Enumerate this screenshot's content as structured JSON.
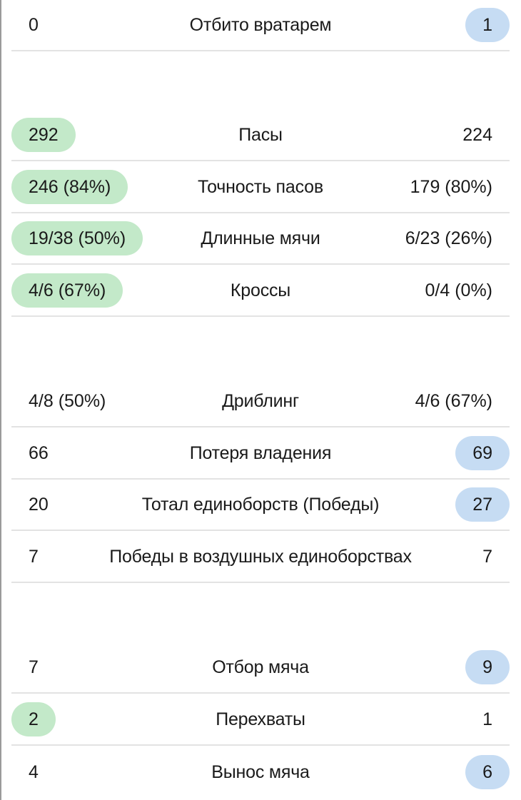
{
  "stats": [
    {
      "label": "Отбито вратарем",
      "home": "0",
      "away": "1",
      "highlight": "away"
    },
    {
      "label": "Пасы",
      "home": "292",
      "away": "224",
      "highlight": "home"
    },
    {
      "label": "Точность пасов",
      "home": "246 (84%)",
      "away": "179 (80%)",
      "highlight": "home"
    },
    {
      "label": "Длинные мячи",
      "home": "19/38 (50%)",
      "away": "6/23 (26%)",
      "highlight": "home"
    },
    {
      "label": "Кроссы",
      "home": "4/6 (67%)",
      "away": "0/4 (0%)",
      "highlight": "home"
    },
    {
      "label": "Дриблинг",
      "home": "4/8 (50%)",
      "away": "4/6 (67%)",
      "highlight": "none"
    },
    {
      "label": "Потеря владения",
      "home": "66",
      "away": "69",
      "highlight": "away"
    },
    {
      "label": "Тотал единоборств (Победы)",
      "home": "20",
      "away": "27",
      "highlight": "away"
    },
    {
      "label": "Победы в воздушных единоборствах",
      "home": "7",
      "away": "7",
      "highlight": "none"
    },
    {
      "label": "Отбор мяча",
      "home": "7",
      "away": "9",
      "highlight": "away"
    },
    {
      "label": "Перехваты",
      "home": "2",
      "away": "1",
      "highlight": "home"
    },
    {
      "label": "Вынос мяча",
      "home": "4",
      "away": "6",
      "highlight": "away"
    }
  ],
  "colors": {
    "home_highlight": "#c3e9c9",
    "away_highlight": "#c6dcf3",
    "divider": "#e3e3e3"
  }
}
